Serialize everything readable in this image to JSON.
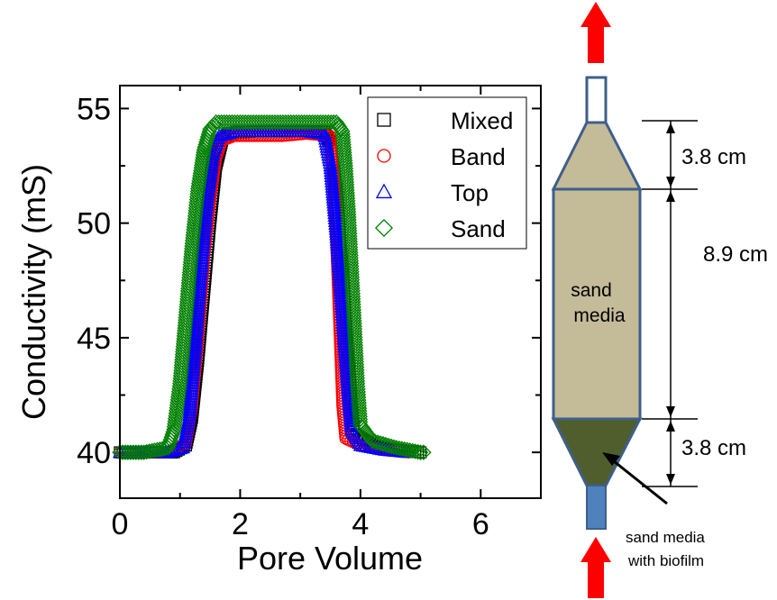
{
  "chart_data": {
    "type": "scatter",
    "xlabel": "Pore Volume",
    "ylabel": "Conductivity (mS)",
    "xlim": [
      0,
      7
    ],
    "ylim": [
      38,
      56
    ],
    "xticks": [
      "0",
      "2",
      "4",
      "6"
    ],
    "yticks": [
      "40",
      "45",
      "50",
      "55"
    ],
    "legend_position": "top-right",
    "series": [
      {
        "name": "Mixed",
        "marker": "square",
        "color": "#000000",
        "points": [
          [
            0.0,
            40.0
          ],
          [
            0.3,
            40.0
          ],
          [
            0.6,
            40.0
          ],
          [
            0.9,
            40.0
          ],
          [
            1.1,
            40.3
          ],
          [
            1.2,
            41.5
          ],
          [
            1.3,
            44.0
          ],
          [
            1.4,
            47.0
          ],
          [
            1.5,
            50.0
          ],
          [
            1.6,
            52.5
          ],
          [
            1.7,
            53.6
          ],
          [
            1.8,
            53.9
          ],
          [
            2.2,
            54.0
          ],
          [
            2.6,
            54.0
          ],
          [
            3.0,
            54.0
          ],
          [
            3.4,
            54.0
          ],
          [
            3.5,
            53.5
          ],
          [
            3.6,
            51.5
          ],
          [
            3.7,
            48.0
          ],
          [
            3.8,
            44.0
          ],
          [
            3.85,
            42.0
          ],
          [
            3.9,
            40.8
          ],
          [
            4.2,
            40.3
          ],
          [
            4.6,
            40.1
          ],
          [
            5.0,
            40.0
          ]
        ]
      },
      {
        "name": "Band",
        "marker": "circle",
        "color": "#ff0000",
        "points": [
          [
            0.0,
            40.0
          ],
          [
            0.4,
            40.0
          ],
          [
            0.8,
            40.0
          ],
          [
            1.1,
            40.4
          ],
          [
            1.2,
            42.0
          ],
          [
            1.3,
            45.0
          ],
          [
            1.4,
            48.5
          ],
          [
            1.5,
            51.0
          ],
          [
            1.6,
            52.8
          ],
          [
            1.7,
            53.6
          ],
          [
            1.9,
            53.8
          ],
          [
            2.3,
            53.8
          ],
          [
            2.7,
            53.8
          ],
          [
            3.1,
            53.9
          ],
          [
            3.5,
            53.8
          ],
          [
            3.55,
            52.0
          ],
          [
            3.6,
            49.0
          ],
          [
            3.65,
            45.5
          ],
          [
            3.7,
            42.0
          ],
          [
            3.75,
            40.6
          ],
          [
            4.0,
            40.3
          ],
          [
            4.4,
            40.1
          ],
          [
            4.8,
            40.0
          ]
        ]
      },
      {
        "name": "Top",
        "marker": "triangle",
        "color": "#0000ff",
        "points": [
          [
            0.0,
            40.0
          ],
          [
            0.4,
            40.0
          ],
          [
            0.8,
            40.0
          ],
          [
            1.05,
            40.2
          ],
          [
            1.15,
            41.5
          ],
          [
            1.25,
            44.5
          ],
          [
            1.35,
            48.0
          ],
          [
            1.45,
            51.0
          ],
          [
            1.55,
            53.0
          ],
          [
            1.65,
            53.8
          ],
          [
            1.9,
            54.0
          ],
          [
            2.3,
            54.0
          ],
          [
            2.7,
            54.0
          ],
          [
            3.1,
            54.0
          ],
          [
            3.4,
            53.9
          ],
          [
            3.5,
            52.5
          ],
          [
            3.6,
            49.5
          ],
          [
            3.7,
            46.0
          ],
          [
            3.8,
            42.5
          ],
          [
            3.85,
            41.0
          ],
          [
            4.0,
            40.3
          ],
          [
            4.4,
            40.1
          ],
          [
            4.8,
            40.0
          ]
        ]
      },
      {
        "name": "Sand",
        "marker": "diamond",
        "color": "#008000",
        "points": [
          [
            0.0,
            40.0
          ],
          [
            0.4,
            40.0
          ],
          [
            0.8,
            40.2
          ],
          [
            0.9,
            41.0
          ],
          [
            1.0,
            43.0
          ],
          [
            1.1,
            46.0
          ],
          [
            1.2,
            49.0
          ],
          [
            1.3,
            51.5
          ],
          [
            1.4,
            53.2
          ],
          [
            1.5,
            54.1
          ],
          [
            1.6,
            54.4
          ],
          [
            2.0,
            54.4
          ],
          [
            2.4,
            54.4
          ],
          [
            2.8,
            54.4
          ],
          [
            3.2,
            54.4
          ],
          [
            3.6,
            54.4
          ],
          [
            3.7,
            54.0
          ],
          [
            3.75,
            52.5
          ],
          [
            3.8,
            50.5
          ],
          [
            3.85,
            48.0
          ],
          [
            3.9,
            45.5
          ],
          [
            3.95,
            43.0
          ],
          [
            4.0,
            41.2
          ],
          [
            4.2,
            40.5
          ],
          [
            4.6,
            40.2
          ],
          [
            5.0,
            40.0
          ],
          [
            5.05,
            40.0
          ]
        ]
      }
    ]
  },
  "diagram": {
    "top_dimension": "3.8 cm",
    "middle_dimension": "8.9 cm",
    "bottom_dimension": "3.8 cm",
    "column_label_line1": "sand",
    "column_label_line2": "media",
    "biofilm_label_line1": "sand media",
    "biofilm_label_line2": "with biofilm"
  },
  "colors": {
    "sand_media": "#c4bb98",
    "biofilm": "#4f5e2c",
    "column_outline": "#3e5f8a",
    "inlet_tube": "#4f81bd",
    "flow_arrow": "#ff0000"
  }
}
